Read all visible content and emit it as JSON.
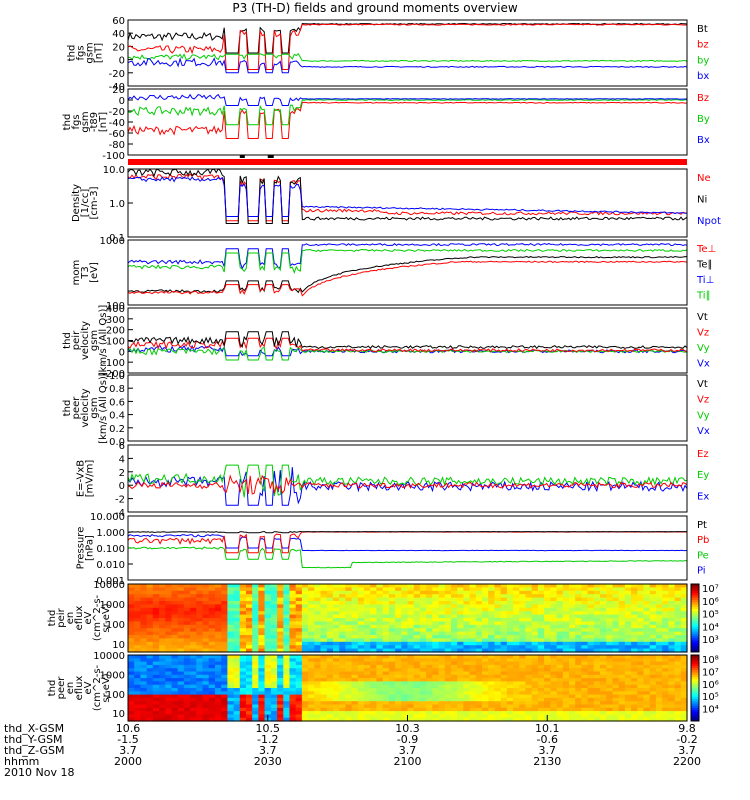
{
  "title": "P3 (TH-D) fields and ground moments overview",
  "date": "2010 Nov 18",
  "colors": {
    "black": "#000000",
    "red": "#ff0000",
    "green": "#00cc00",
    "blue": "#0000ff"
  },
  "chart_data": [
    {
      "type": "line",
      "ylabel": [
        "thd",
        "fgs",
        "gsm",
        "[nT]"
      ],
      "yticks": [
        "60",
        "40",
        "20",
        "0",
        "-20",
        "-40"
      ],
      "ylim": [
        -40,
        60
      ],
      "series": [
        {
          "name": "Bt",
          "color": "black"
        },
        {
          "name": "bz",
          "color": "red"
        },
        {
          "name": "by",
          "color": "green"
        },
        {
          "name": "bx",
          "color": "blue"
        }
      ]
    },
    {
      "type": "line",
      "ylabel": [
        "thd",
        "fgs",
        "gsm",
        "-t89",
        "[nT]"
      ],
      "yticks": [
        "20",
        "0",
        "-20",
        "-40",
        "-60",
        "-80",
        "-100"
      ],
      "ylim": [
        -100,
        20
      ],
      "series": [
        {
          "name": "Bz",
          "color": "red"
        },
        {
          "name": "By",
          "color": "green"
        },
        {
          "name": "Bx",
          "color": "blue"
        }
      ]
    },
    {
      "type": "line",
      "log": true,
      "ylabel": [
        "Density",
        "[1/cc]",
        "[cm-3]"
      ],
      "yticks": [
        "10.0",
        "1.0",
        "0.1"
      ],
      "ylim": [
        0.1,
        10
      ],
      "series": [
        {
          "name": "Ne",
          "color": "red"
        },
        {
          "name": "Ni",
          "color": "black"
        },
        {
          "name": "Npot",
          "color": "blue"
        }
      ]
    },
    {
      "type": "line",
      "log": true,
      "ylabel": [
        "mom",
        "T3",
        "[eV]"
      ],
      "yticks": [
        "1000",
        "100"
      ],
      "ylim": [
        30,
        5000
      ],
      "series": [
        {
          "name": "Te⊥",
          "color": "red"
        },
        {
          "name": "Te∥",
          "color": "black"
        },
        {
          "name": "Ti⊥",
          "color": "blue"
        },
        {
          "name": "Ti∥",
          "color": "green"
        }
      ]
    },
    {
      "type": "line",
      "ylabel": [
        "thd",
        "peir",
        "velocity",
        "gsm",
        "[km/s (All Qs)]"
      ],
      "yticks": [
        "400",
        "300",
        "200",
        "100",
        "0",
        "-100",
        "-200"
      ],
      "ylim": [
        -200,
        400
      ],
      "series": [
        {
          "name": "Vt",
          "color": "black"
        },
        {
          "name": "Vz",
          "color": "red"
        },
        {
          "name": "Vy",
          "color": "green"
        },
        {
          "name": "Vx",
          "color": "blue"
        }
      ]
    },
    {
      "type": "line",
      "ylabel": [
        "thd",
        "peer",
        "velocity",
        "gsm",
        "[km/s (All Qs)]"
      ],
      "yticks": [
        "1.0",
        "0.8",
        "0.6",
        "0.4",
        "0.2",
        "0.0"
      ],
      "ylim": [
        0,
        1
      ],
      "series": [
        {
          "name": "Vt",
          "color": "black"
        },
        {
          "name": "Vz",
          "color": "red"
        },
        {
          "name": "Vy",
          "color": "green"
        },
        {
          "name": "Vx",
          "color": "blue"
        }
      ]
    },
    {
      "type": "line",
      "ylabel": [
        "E=-VxB",
        "[mV/m]"
      ],
      "yticks": [
        "6",
        "4",
        "2",
        "0",
        "-2",
        "-4"
      ],
      "ylim": [
        -4,
        6
      ],
      "series": [
        {
          "name": "Ez",
          "color": "red"
        },
        {
          "name": "Ey",
          "color": "green"
        },
        {
          "name": "Ex",
          "color": "blue"
        }
      ]
    },
    {
      "type": "line",
      "log": true,
      "ylabel": [
        "Pressure",
        "[nPa]"
      ],
      "yticks": [
        "10.000",
        "1.000",
        "0.100",
        "0.010",
        "0.001"
      ],
      "ylim": [
        0.001,
        10
      ],
      "series": [
        {
          "name": "Pt",
          "color": "black"
        },
        {
          "name": "Pb",
          "color": "red"
        },
        {
          "name": "Pe",
          "color": "green"
        },
        {
          "name": "Pi",
          "color": "blue"
        }
      ]
    },
    {
      "type": "heatmap",
      "log": true,
      "ylabel": [
        "thd",
        "peir",
        "en",
        "eflux",
        "eV",
        "(cm^2-s-",
        "sr-eV)"
      ],
      "yticks": [
        "10000",
        "1000",
        "100",
        "10"
      ],
      "colorbar_ticks": [
        "10⁷",
        "10⁶",
        "10⁵",
        "10⁴",
        "10³"
      ]
    },
    {
      "type": "heatmap",
      "log": true,
      "ylabel": [
        "thd",
        "peer",
        "en",
        "eflux",
        "eV",
        "(cm^2-s-",
        "sr-eV)"
      ],
      "yticks": [
        "10000",
        "1000",
        "100",
        "10"
      ],
      "colorbar_ticks": [
        "10⁸",
        "10⁷",
        "10⁶",
        "10⁵",
        "10⁴"
      ]
    }
  ],
  "x_axis": {
    "row_labels": [
      "thd_X-GSM",
      "thd_Y-GSM",
      "thd_Z-GSM",
      "hhmm"
    ],
    "columns": [
      [
        "10.6",
        "-1.5",
        "3.7",
        "2000"
      ],
      [
        "10.5",
        "-1.2",
        "3.7",
        "2030"
      ],
      [
        "10.3",
        "-0.9",
        "3.7",
        "2100"
      ],
      [
        "10.1",
        "-0.6",
        "3.7",
        "2130"
      ],
      [
        "9.8",
        "-0.2",
        "3.7",
        "2200"
      ]
    ]
  }
}
